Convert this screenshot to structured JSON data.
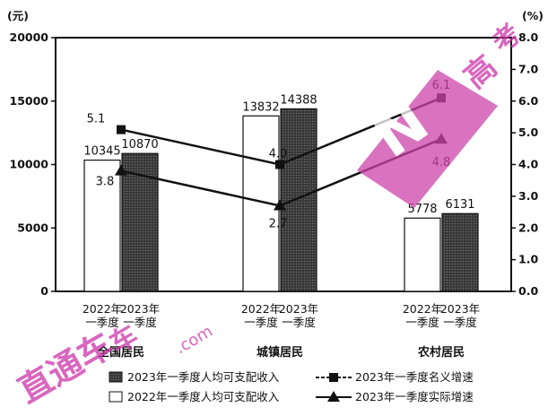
{
  "chart_data": {
    "type": "bar",
    "title": "",
    "left_axis": {
      "unit": "(元)",
      "ylim": [
        0,
        20000
      ],
      "ticks": [
        "0",
        "5000",
        "10000",
        "15000",
        "20000"
      ]
    },
    "right_axis": {
      "unit": "(%)",
      "ylim": [
        0,
        8
      ],
      "ticks": [
        "0.0",
        "1.0",
        "2.0",
        "3.0",
        "4.0",
        "5.0",
        "6.0",
        "7.0",
        "8.0"
      ]
    },
    "groups": [
      {
        "label": "全国居民",
        "bars": [
          {
            "category": "2022年\n一季度",
            "series": "2022年一季度人均可支配收入",
            "value": 10345
          },
          {
            "category": "2023年\n一季度",
            "series": "2023年一季度人均可支配收入",
            "value": 10870
          }
        ]
      },
      {
        "label": "城镇居民",
        "bars": [
          {
            "category": "2022年\n一季度",
            "series": "2022年一季度人均可支配收入",
            "value": 13832
          },
          {
            "category": "2023年\n一季度",
            "series": "2023年一季度人均可支配收入",
            "value": 14388
          }
        ]
      },
      {
        "label": "农村居民",
        "bars": [
          {
            "category": "2022年\n一季度",
            "series": "2022年一季度人均可支配收入",
            "value": 5778
          },
          {
            "category": "2023年\n一季度",
            "series": "2023年一季度人均可支配收入",
            "value": 6131
          }
        ]
      }
    ],
    "line_series": [
      {
        "name": "2023年一季度名义增速",
        "marker": "square",
        "values": [
          5.1,
          4.0,
          6.1
        ],
        "labels": [
          "5.1",
          "4.0",
          "6.1"
        ]
      },
      {
        "name": "2023年一季度实际增速",
        "marker": "triangle",
        "values": [
          3.8,
          2.7,
          4.8
        ],
        "labels": [
          "3.8",
          "2.7",
          "4.8"
        ]
      }
    ],
    "legend": [
      {
        "name": "2023年一季度人均可支配收入",
        "swatch": "dark-bar"
      },
      {
        "name": "2022年一季度人均可支配收入",
        "swatch": "white-bar"
      },
      {
        "name": "2023年一季度名义增速",
        "swatch": "square-line"
      },
      {
        "name": "2023年一季度实际增速",
        "swatch": "triangle-line"
      }
    ],
    "legend_position": "bottom",
    "grid": false,
    "colors": {
      "bar_2023": "#444444",
      "bar_2022": "#ffffff",
      "line": "#111111",
      "watermark": "#cc33aa"
    }
  },
  "watermark_text": "高考直通车 gaokaozhitongche.com"
}
